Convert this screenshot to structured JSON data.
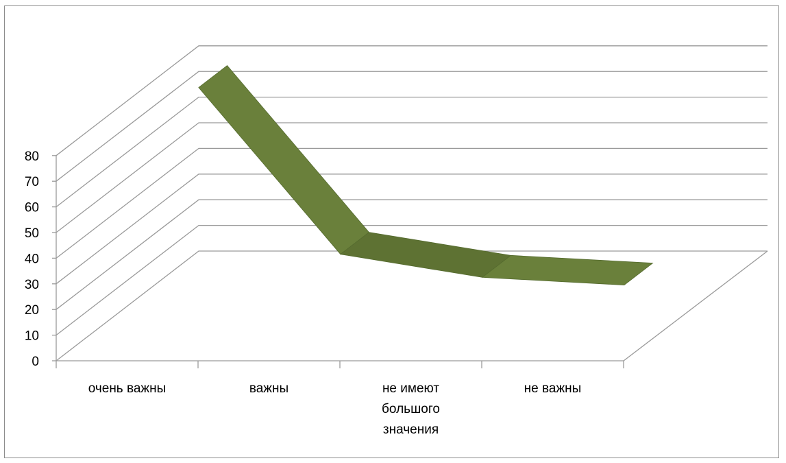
{
  "chart_data": {
    "type": "line",
    "style": "3d-ribbon",
    "categories": [
      "очень важны",
      "важны",
      "не имеют большого значения",
      "не важны"
    ],
    "category_lines": [
      [
        "очень важны"
      ],
      [
        "важны"
      ],
      [
        "не имеют",
        "большого",
        "значения"
      ],
      [
        "не важны"
      ]
    ],
    "series": [
      {
        "values": [
          83,
          18,
          9,
          6
        ],
        "color": "#6a803b"
      }
    ],
    "ylim": [
      0,
      80
    ],
    "yticks": [
      0,
      10,
      20,
      30,
      40,
      50,
      60,
      70,
      80
    ],
    "grid": true,
    "legend": "none"
  }
}
